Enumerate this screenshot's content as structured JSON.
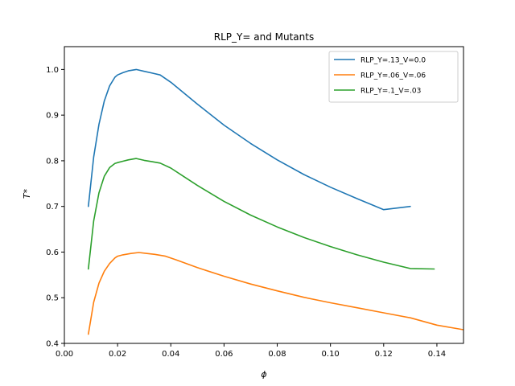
{
  "chart_data": {
    "type": "line",
    "title": "RLP_Y= and Mutants",
    "xlabel": "ϕ",
    "ylabel": "T*",
    "xlim": [
      0.0,
      0.15
    ],
    "ylim": [
      0.4,
      1.05
    ],
    "xticks": [
      0.0,
      0.02,
      0.04,
      0.06,
      0.08,
      0.1,
      0.12,
      0.14
    ],
    "xtick_labels": [
      "0.00",
      "0.02",
      "0.04",
      "0.06",
      "0.08",
      "0.10",
      "0.12",
      "0.14"
    ],
    "yticks": [
      0.4,
      0.5,
      0.6,
      0.7,
      0.8,
      0.9,
      1.0
    ],
    "ytick_labels": [
      "0.4",
      "0.5",
      "0.6",
      "0.7",
      "0.8",
      "0.9",
      "1.0"
    ],
    "grid": false,
    "legend_position": "top-right",
    "series": [
      {
        "name": "RLP_Y=.13_V=0.0",
        "color": "#1f77b4",
        "x": [
          0.009,
          0.011,
          0.013,
          0.015,
          0.017,
          0.019,
          0.02,
          0.022,
          0.024,
          0.027,
          0.03,
          0.033,
          0.036,
          0.04,
          0.045,
          0.05,
          0.06,
          0.07,
          0.08,
          0.09,
          0.1,
          0.11,
          0.12,
          0.13
        ],
        "y": [
          0.7,
          0.808,
          0.88,
          0.931,
          0.964,
          0.983,
          0.988,
          0.993,
          0.997,
          1.0,
          0.996,
          0.992,
          0.988,
          0.972,
          0.948,
          0.924,
          0.878,
          0.838,
          0.802,
          0.77,
          0.742,
          0.717,
          0.693,
          0.7
        ]
      },
      {
        "name": "RLP_Y=.06_V=.06",
        "color": "#ff7f0e",
        "x": [
          0.009,
          0.011,
          0.013,
          0.015,
          0.017,
          0.019,
          0.02,
          0.022,
          0.025,
          0.028,
          0.031,
          0.034,
          0.038,
          0.042,
          0.05,
          0.06,
          0.07,
          0.08,
          0.09,
          0.1,
          0.11,
          0.12,
          0.13,
          0.14,
          0.15
        ],
        "y": [
          0.42,
          0.49,
          0.532,
          0.558,
          0.575,
          0.587,
          0.591,
          0.594,
          0.597,
          0.599,
          0.597,
          0.595,
          0.591,
          0.583,
          0.566,
          0.547,
          0.53,
          0.515,
          0.501,
          0.489,
          0.478,
          0.467,
          0.456,
          0.44,
          0.43
        ]
      },
      {
        "name": "RLP_Y=.1_V=.03",
        "color": "#2ca02c",
        "x": [
          0.009,
          0.011,
          0.013,
          0.015,
          0.017,
          0.019,
          0.02,
          0.022,
          0.024,
          0.027,
          0.03,
          0.033,
          0.036,
          0.04,
          0.045,
          0.05,
          0.06,
          0.07,
          0.08,
          0.09,
          0.1,
          0.11,
          0.12,
          0.13,
          0.139
        ],
        "y": [
          0.563,
          0.668,
          0.73,
          0.766,
          0.785,
          0.794,
          0.796,
          0.799,
          0.802,
          0.805,
          0.801,
          0.798,
          0.795,
          0.784,
          0.765,
          0.746,
          0.711,
          0.681,
          0.655,
          0.632,
          0.612,
          0.594,
          0.578,
          0.564,
          0.563
        ]
      }
    ]
  }
}
